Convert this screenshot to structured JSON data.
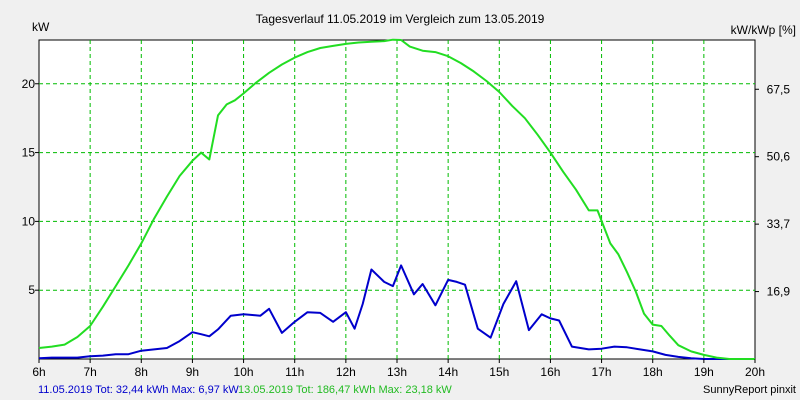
{
  "chart_data": {
    "type": "line",
    "title": "Tagesverlauf 11.05.2019 im Vergleich zum 13.05.2019",
    "ylabel_left": "kW",
    "ylabel_right": "kW/kWp [%]",
    "xlim": [
      6,
      20
    ],
    "ylim": [
      0,
      23.18
    ],
    "x_ticks": [
      {
        "value": 6,
        "label": "6h"
      },
      {
        "value": 7,
        "label": "7h"
      },
      {
        "value": 8,
        "label": "8h"
      },
      {
        "value": 9,
        "label": "9h"
      },
      {
        "value": 10,
        "label": "10h"
      },
      {
        "value": 11,
        "label": "11h"
      },
      {
        "value": 12,
        "label": "12h"
      },
      {
        "value": 13,
        "label": "13h"
      },
      {
        "value": 14,
        "label": "14h"
      },
      {
        "value": 15,
        "label": "15h"
      },
      {
        "value": 16,
        "label": "16h"
      },
      {
        "value": 17,
        "label": "17h"
      },
      {
        "value": 18,
        "label": "18h"
      },
      {
        "value": 19,
        "label": "19h"
      },
      {
        "value": 20,
        "label": "20h"
      }
    ],
    "y_ticks_left": [
      {
        "value": 5,
        "label": "5"
      },
      {
        "value": 10,
        "label": "10"
      },
      {
        "value": 15,
        "label": "15"
      },
      {
        "value": 20,
        "label": "20"
      }
    ],
    "y_ticks_right": [
      {
        "value": 4.9,
        "label": "16,9"
      },
      {
        "value": 9.8,
        "label": "33,7"
      },
      {
        "value": 14.7,
        "label": "50,6"
      },
      {
        "value": 19.6,
        "label": "67,5"
      }
    ],
    "grid": true,
    "series": [
      {
        "color": "#0000cc",
        "x": [
          6.0,
          6.25,
          6.5,
          6.75,
          7.0,
          7.25,
          7.5,
          7.75,
          8.0,
          8.25,
          8.5,
          8.75,
          9.0,
          9.17,
          9.33,
          9.5,
          9.75,
          10.0,
          10.17,
          10.33,
          10.5,
          10.75,
          11.0,
          11.25,
          11.5,
          11.75,
          12.0,
          12.17,
          12.33,
          12.5,
          12.75,
          12.92,
          13.08,
          13.33,
          13.5,
          13.75,
          14.0,
          14.17,
          14.33,
          14.58,
          14.83,
          15.08,
          15.33,
          15.58,
          15.83,
          16.0,
          16.17,
          16.42,
          16.75,
          17.0,
          17.25,
          17.5,
          17.75,
          18.0,
          18.25,
          18.5,
          18.75,
          19.0,
          19.25,
          19.5,
          19.75,
          20.0
        ],
        "y": [
          0.05,
          0.1,
          0.1,
          0.1,
          0.2,
          0.25,
          0.35,
          0.35,
          0.6,
          0.7,
          0.8,
          1.3,
          1.95,
          1.8,
          1.65,
          2.15,
          3.15,
          3.25,
          3.2,
          3.15,
          3.65,
          1.9,
          2.7,
          3.4,
          3.35,
          2.7,
          3.4,
          2.2,
          4.0,
          6.5,
          5.6,
          5.3,
          6.8,
          4.7,
          5.45,
          3.9,
          5.75,
          5.6,
          5.4,
          2.2,
          1.55,
          4.0,
          5.65,
          2.1,
          3.25,
          2.95,
          2.8,
          0.9,
          0.7,
          0.75,
          0.9,
          0.85,
          0.7,
          0.55,
          0.3,
          0.15,
          0.05,
          0.0,
          0.0,
          0.0,
          0.0,
          0.0
        ]
      },
      {
        "color": "#22dd22",
        "x": [
          6.0,
          6.25,
          6.5,
          6.75,
          7.0,
          7.25,
          7.5,
          7.75,
          8.0,
          8.25,
          8.5,
          8.75,
          9.0,
          9.17,
          9.33,
          9.5,
          9.67,
          9.83,
          10.0,
          10.25,
          10.5,
          10.75,
          11.0,
          11.25,
          11.5,
          11.75,
          12.0,
          12.25,
          12.5,
          12.75,
          12.92,
          13.08,
          13.25,
          13.5,
          13.75,
          14.0,
          14.25,
          14.5,
          14.75,
          15.0,
          15.25,
          15.5,
          15.75,
          16.0,
          16.25,
          16.5,
          16.75,
          16.92,
          17.17,
          17.33,
          17.5,
          17.67,
          17.83,
          18.0,
          18.17,
          18.33,
          18.5,
          18.75,
          19.0,
          19.25,
          19.5,
          19.75,
          20.0
        ],
        "y": [
          0.8,
          0.9,
          1.05,
          1.6,
          2.4,
          3.8,
          5.3,
          6.8,
          8.4,
          10.2,
          11.8,
          13.3,
          14.4,
          15.0,
          14.5,
          17.7,
          18.5,
          18.8,
          19.3,
          20.1,
          20.8,
          21.4,
          21.9,
          22.3,
          22.6,
          22.75,
          22.9,
          23.0,
          23.05,
          23.1,
          23.2,
          23.18,
          22.7,
          22.4,
          22.3,
          22.0,
          21.5,
          20.9,
          20.2,
          19.4,
          18.4,
          17.5,
          16.3,
          15.0,
          13.6,
          12.3,
          10.8,
          10.8,
          8.4,
          7.6,
          6.3,
          4.9,
          3.3,
          2.5,
          2.4,
          1.7,
          1.0,
          0.55,
          0.3,
          0.1,
          0.0,
          0.0,
          0.0
        ]
      }
    ],
    "legend": [
      {
        "text": "11.05.2019 Tot: 32,44 kWh Max: 6,97 kW",
        "color": "#0000cc"
      },
      {
        "text": "13.05.2019 Tot: 186,47 kWh Max: 23,18 kW",
        "color": "#22dd22"
      }
    ],
    "credit": "SunnyReport pinxit"
  }
}
